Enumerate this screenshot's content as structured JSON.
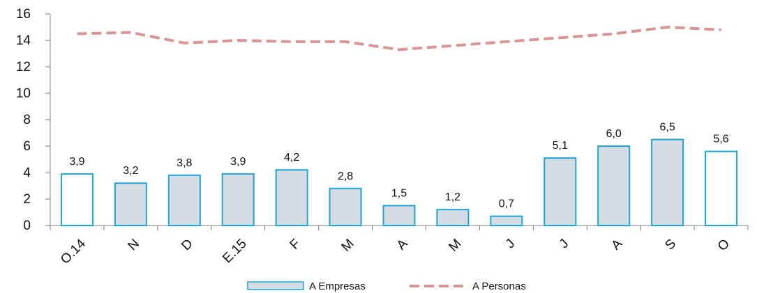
{
  "chart_data": {
    "type": "bar",
    "categories": [
      "O.14",
      "N",
      "D",
      "E.15",
      "F",
      "M",
      "A",
      "M",
      "J",
      "J",
      "A",
      "S",
      "O"
    ],
    "ylim": [
      0,
      16
    ],
    "yticks": [
      0,
      2,
      4,
      6,
      8,
      10,
      12,
      14,
      16
    ],
    "grid": false,
    "legend_position": "bottom",
    "series": [
      {
        "name": "A Empresas",
        "type": "bar",
        "values": [
          3.9,
          3.2,
          3.8,
          3.9,
          4.2,
          2.8,
          1.5,
          1.2,
          0.7,
          5.1,
          6.0,
          6.5,
          5.6
        ],
        "value_labels": [
          "3,9",
          "3,2",
          "3,8",
          "3,9",
          "4,2",
          "2,8",
          "1,5",
          "1,2",
          "0,7",
          "5,1",
          "6,0",
          "6,5",
          "5,6"
        ],
        "fill_colors": [
          "#ffffff",
          "#d6dce4",
          "#d6dce4",
          "#d6dce4",
          "#d6dce4",
          "#d6dce4",
          "#d6dce4",
          "#d6dce4",
          "#d6dce4",
          "#d6dce4",
          "#d6dce4",
          "#d6dce4",
          "#ffffff"
        ],
        "edge_color": "#1ea5d8"
      },
      {
        "name": "A Personas",
        "type": "line",
        "style": "dashed",
        "color": "#d99594",
        "values": [
          14.5,
          14.6,
          13.8,
          14.0,
          13.9,
          13.9,
          13.3,
          13.6,
          13.9,
          14.2,
          14.5,
          15.0,
          14.8
        ]
      }
    ]
  }
}
